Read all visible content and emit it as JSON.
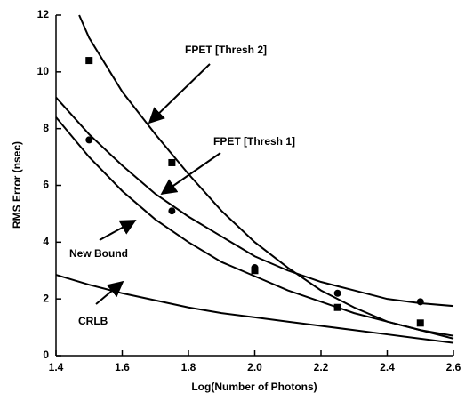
{
  "chart_data": {
    "type": "line",
    "xlabel": "Log(Number of Photons)",
    "ylabel": "RMS Error (nsec)",
    "xlim": [
      1.4,
      2.6
    ],
    "xticks": [
      1.4,
      1.6,
      1.8,
      {
        "value": 2,
        "label": "2.0"
      },
      2.2,
      2.4,
      2.6
    ],
    "ylim": [
      0,
      12
    ],
    "yticks": [
      0,
      2,
      4,
      6,
      8,
      10,
      12
    ],
    "grid": false,
    "series": [
      {
        "type": "line",
        "color": "#000000",
        "x": [
          1.47,
          1.5,
          1.6,
          1.7,
          1.8,
          1.9,
          2.0,
          2.1,
          2.2,
          2.3,
          2.4,
          2.5,
          2.6
        ],
        "values": [
          12,
          11.2,
          9.3,
          7.8,
          6.4,
          5.1,
          4.0,
          3.1,
          2.3,
          1.7,
          1.2,
          0.9,
          0.7
        ]
      },
      {
        "type": "line",
        "color": "#000000",
        "x": [
          1.4,
          1.5,
          1.6,
          1.7,
          1.8,
          1.9,
          2.0,
          2.1,
          2.2,
          2.3,
          2.4,
          2.5,
          2.6
        ],
        "values": [
          9.1,
          7.8,
          6.7,
          5.7,
          4.9,
          4.2,
          3.5,
          3.0,
          2.6,
          2.3,
          2.0,
          1.85,
          1.75
        ]
      },
      {
        "type": "line",
        "color": "#000000",
        "x": [
          1.4,
          1.5,
          1.6,
          1.7,
          1.8,
          1.9,
          2.0,
          2.1,
          2.2,
          2.3,
          2.4,
          2.5,
          2.6
        ],
        "values": [
          8.4,
          7.0,
          5.8,
          4.8,
          4.0,
          3.3,
          2.8,
          2.3,
          1.9,
          1.5,
          1.2,
          0.9,
          0.6
        ]
      },
      {
        "type": "line",
        "color": "#000000",
        "x": [
          1.4,
          1.5,
          1.6,
          1.7,
          1.8,
          1.9,
          2.0,
          2.1,
          2.2,
          2.3,
          2.4,
          2.5,
          2.6
        ],
        "values": [
          2.85,
          2.5,
          2.2,
          1.95,
          1.7,
          1.5,
          1.35,
          1.2,
          1.05,
          0.9,
          0.75,
          0.6,
          0.45
        ]
      },
      {
        "type": "scatter",
        "marker": "square",
        "color": "#000000",
        "x": [
          1.5,
          1.75,
          2.0,
          2.25,
          2.5
        ],
        "values": [
          10.4,
          6.8,
          3.0,
          1.7,
          1.15
        ]
      },
      {
        "type": "scatter",
        "marker": "circle",
        "color": "#000000",
        "x": [
          1.5,
          1.75,
          2.0,
          2.25,
          2.5
        ],
        "values": [
          7.6,
          5.1,
          3.1,
          2.2,
          1.9
        ]
      }
    ],
    "annotations": [
      {
        "text": "FPET [Thresh 2]"
      },
      {
        "text": "FPET [Thresh 1]"
      },
      {
        "text": "New Bound"
      },
      {
        "text": "CRLB"
      }
    ]
  }
}
